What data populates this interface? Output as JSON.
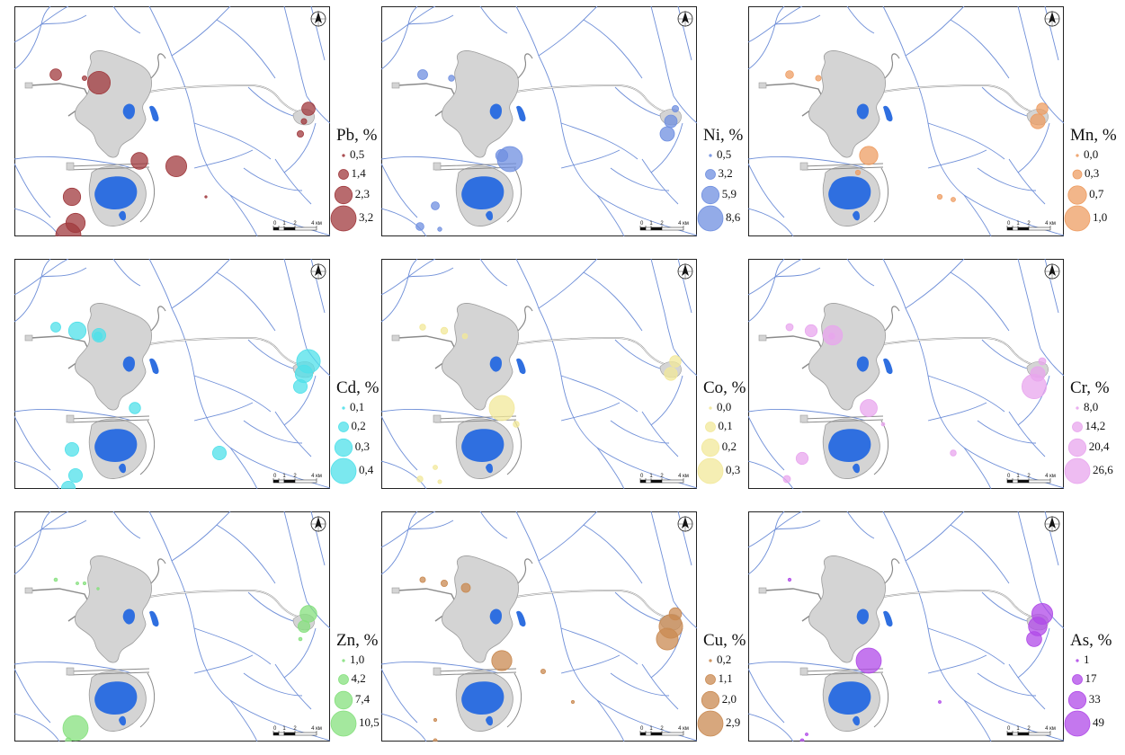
{
  "scale_bar": {
    "ticks": [
      "0",
      "1",
      "2",
      "4 км"
    ]
  },
  "colors": {
    "river": "#6f8fd8",
    "waste_dump": "#d4d4d4",
    "waste_dump_edge": "#9c9c9c",
    "pond": "#2f6fe0",
    "road": "#8a8a8a"
  },
  "panels": [
    {
      "element": "Pb",
      "title": "Pb, %",
      "color": "#a0393d",
      "legend": [
        "0,5",
        "1,4",
        "2,3",
        "3,2"
      ],
      "legend_values": [
        0.5,
        1.4,
        2.3,
        3.2
      ],
      "points": [
        {
          "site": 1,
          "v": 1.6
        },
        {
          "site": 2,
          "v": 0.8
        },
        {
          "site": 3,
          "v": 2.9
        },
        {
          "site": 13,
          "v": 2.2
        },
        {
          "site": 12,
          "v": 2.7
        },
        {
          "site": 6,
          "v": 2.3
        },
        {
          "site": 14,
          "v": 2.5
        },
        {
          "site": 15,
          "v": 3.2
        },
        {
          "site": 7,
          "v": 0.5
        },
        {
          "site": 9,
          "v": 1.8
        },
        {
          "site": 10,
          "v": 0.9
        },
        {
          "site": 11,
          "v": 1.0
        }
      ]
    },
    {
      "element": "Ni",
      "title": "Ni, %",
      "color": "#6f8fe0",
      "legend": [
        "0,5",
        "3,2",
        "5,9",
        "8,6"
      ],
      "legend_values": [
        0.5,
        3.2,
        5.9,
        8.6
      ],
      "points": [
        {
          "site": 1,
          "v": 3.2
        },
        {
          "site": 5,
          "v": 8.6
        },
        {
          "site": 4,
          "v": 4.0
        },
        {
          "site": 17,
          "v": 2.6
        },
        {
          "site": 18,
          "v": 2.5
        },
        {
          "site": 9,
          "v": 2.0
        },
        {
          "site": 10,
          "v": 4.2
        },
        {
          "site": 11,
          "v": 4.8
        },
        {
          "site": 19,
          "v": 1.2
        },
        {
          "site": 2,
          "v": 1.8
        }
      ]
    },
    {
      "element": "Mn",
      "title": "Mn, %",
      "color": "#ee9d63",
      "legend": [
        "0,0",
        "0,3",
        "0,7",
        "1,0"
      ],
      "legend_values": [
        0.0,
        0.3,
        0.7,
        1.0
      ],
      "points": [
        {
          "site": 1,
          "v": 0.25
        },
        {
          "site": 2,
          "v": 0.15
        },
        {
          "site": 4,
          "v": 0.7
        },
        {
          "site": 9,
          "v": 0.4
        },
        {
          "site": 10,
          "v": 0.55
        },
        {
          "site": 7,
          "v": 0.12
        },
        {
          "site": 20,
          "v": 0.1
        },
        {
          "site": 21,
          "v": 0.12
        }
      ]
    },
    {
      "element": "Cd",
      "title": "Cd, %",
      "color": "#4fe0ea",
      "legend": [
        "0,1",
        "0,2",
        "0,3",
        "0,4"
      ],
      "legend_values": [
        0.1,
        0.2,
        0.3,
        0.4
      ],
      "points": [
        {
          "site": 1,
          "v": 0.2
        },
        {
          "site": 3,
          "v": 0.25
        },
        {
          "site": 22,
          "v": 0.3
        },
        {
          "site": 9,
          "v": 0.38
        },
        {
          "site": 10,
          "v": 0.3
        },
        {
          "site": 11,
          "v": 0.25
        },
        {
          "site": 4,
          "v": 0.22
        },
        {
          "site": 16,
          "v": 0.18
        },
        {
          "site": 6,
          "v": 0.25
        },
        {
          "site": 14,
          "v": 0.25
        },
        {
          "site": 15,
          "v": 0.25
        },
        {
          "site": 23,
          "v": 0.25
        }
      ]
    },
    {
      "element": "Co",
      "title": "Co, %",
      "color": "#f2e89a",
      "legend": [
        "0,0",
        "0,1",
        "0,2",
        "0,3"
      ],
      "legend_values": [
        0.0,
        0.1,
        0.2,
        0.3
      ],
      "points": [
        {
          "site": 1,
          "v": 0.05
        },
        {
          "site": 22,
          "v": 0.06
        },
        {
          "site": 9,
          "v": 0.12
        },
        {
          "site": 10,
          "v": 0.14
        },
        {
          "site": 24,
          "v": 0.05
        },
        {
          "site": 4,
          "v": 0.3
        },
        {
          "site": 16,
          "v": 0.04
        },
        {
          "site": 18,
          "v": 0.05
        },
        {
          "site": 25,
          "v": 0.03
        },
        {
          "site": 19,
          "v": 0.02
        }
      ]
    },
    {
      "element": "Cr",
      "title": "Cr, %",
      "color": "#e8a6ee",
      "legend": [
        "8,0",
        "14,2",
        "20,4",
        "26,6"
      ],
      "legend_values": [
        8.0,
        14.2,
        20.4,
        26.6
      ],
      "points": [
        {
          "site": 1,
          "v": 12.0
        },
        {
          "site": 3,
          "v": 22.0
        },
        {
          "site": 22,
          "v": 16.0
        },
        {
          "site": 9,
          "v": 12.0
        },
        {
          "site": 10,
          "v": 18.0
        },
        {
          "site": 11,
          "v": 26.0
        },
        {
          "site": 4,
          "v": 20.0
        },
        {
          "site": 16,
          "v": 11.0
        },
        {
          "site": 17,
          "v": 16.0
        },
        {
          "site": 18,
          "v": 12.0
        },
        {
          "site": 23,
          "v": 11.0
        },
        {
          "site": 24,
          "v": 9.0
        }
      ]
    },
    {
      "element": "Zn",
      "title": "Zn, %",
      "color": "#86e07e",
      "legend": [
        "1,0",
        "4,2",
        "7,4",
        "10,5"
      ],
      "legend_values": [
        1.0,
        4.2,
        7.4,
        10.5
      ],
      "points": [
        {
          "site": 1,
          "v": 1.5
        },
        {
          "site": 22,
          "v": 1.2
        },
        {
          "site": 2,
          "v": 1.3
        },
        {
          "site": 9,
          "v": 7.0
        },
        {
          "site": 10,
          "v": 5.0
        },
        {
          "site": 11,
          "v": 1.5
        },
        {
          "site": 16,
          "v": 1.1
        },
        {
          "site": 14,
          "v": 10.5
        },
        {
          "site": 15,
          "v": 2.5
        }
      ]
    },
    {
      "element": "Cu",
      "title": "Cu, %",
      "color": "#c98a52",
      "legend": [
        "0,2",
        "1,1",
        "2,0",
        "2,9"
      ],
      "legend_values": [
        0.2,
        1.1,
        2.0,
        2.9
      ],
      "points": [
        {
          "site": 1,
          "v": 0.6
        },
        {
          "site": 3,
          "v": 1.0
        },
        {
          "site": 22,
          "v": 0.7
        },
        {
          "site": 9,
          "v": 1.4
        },
        {
          "site": 10,
          "v": 2.7
        },
        {
          "site": 11,
          "v": 2.5
        },
        {
          "site": 4,
          "v": 2.3
        },
        {
          "site": 12,
          "v": 0.5
        },
        {
          "site": 7,
          "v": 0.3
        },
        {
          "site": 15,
          "v": 0.4
        },
        {
          "site": 25,
          "v": 0.3
        }
      ]
    },
    {
      "element": "As",
      "title": "As, %",
      "color": "#b04ae8",
      "legend": [
        "1",
        "17",
        "33",
        "49"
      ],
      "legend_values": [
        1,
        17,
        33,
        49
      ],
      "points": [
        {
          "site": 1,
          "v": 3
        },
        {
          "site": 9,
          "v": 40
        },
        {
          "site": 10,
          "v": 35
        },
        {
          "site": 11,
          "v": 28
        },
        {
          "site": 4,
          "v": 49
        },
        {
          "site": 7,
          "v": 2
        },
        {
          "site": 15,
          "v": 4
        },
        {
          "site": 19,
          "v": 2
        }
      ]
    }
  ]
}
